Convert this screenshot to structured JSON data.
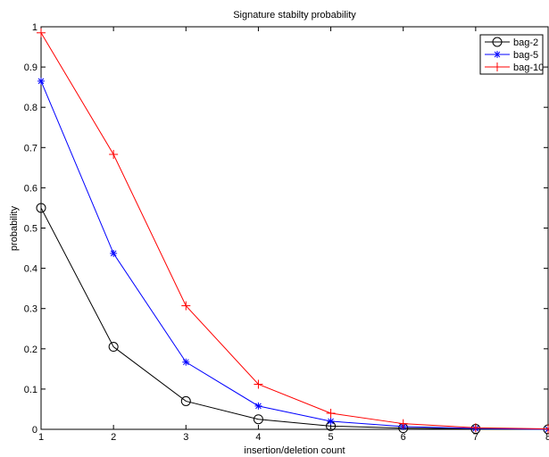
{
  "chart_data": {
    "type": "line",
    "title": "Signature stabilty probability",
    "xlabel": "insertion/deletion count",
    "ylabel": "probability",
    "xlim": [
      1,
      8
    ],
    "ylim": [
      0,
      1
    ],
    "xticks": [
      1,
      2,
      3,
      4,
      5,
      6,
      7,
      8
    ],
    "yticks": [
      0,
      0.1,
      0.2,
      0.3,
      0.4,
      0.5,
      0.6,
      0.7,
      0.8,
      0.9,
      1
    ],
    "ytick_labels": [
      "0",
      "0.1",
      "0.2",
      "0.3",
      "0.4",
      "0.5",
      "0.6",
      "0.7",
      "0.8",
      "0.9",
      "1"
    ],
    "grid": false,
    "legend_position": "top-right",
    "x": [
      1,
      2,
      3,
      4,
      5,
      6,
      7,
      8
    ],
    "series": [
      {
        "name": "bag-2",
        "color": "#000000",
        "marker": "circle",
        "values": [
          0.55,
          0.205,
          0.07,
          0.025,
          0.008,
          0.003,
          0.001,
          0.0
        ]
      },
      {
        "name": "bag-5",
        "color": "#0000ff",
        "marker": "asterisk",
        "values": [
          0.865,
          0.437,
          0.167,
          0.058,
          0.02,
          0.007,
          0.002,
          0.0
        ]
      },
      {
        "name": "bag-10",
        "color": "#ff0000",
        "marker": "plus",
        "values": [
          0.985,
          0.683,
          0.307,
          0.112,
          0.04,
          0.014,
          0.004,
          0.001
        ]
      }
    ]
  }
}
